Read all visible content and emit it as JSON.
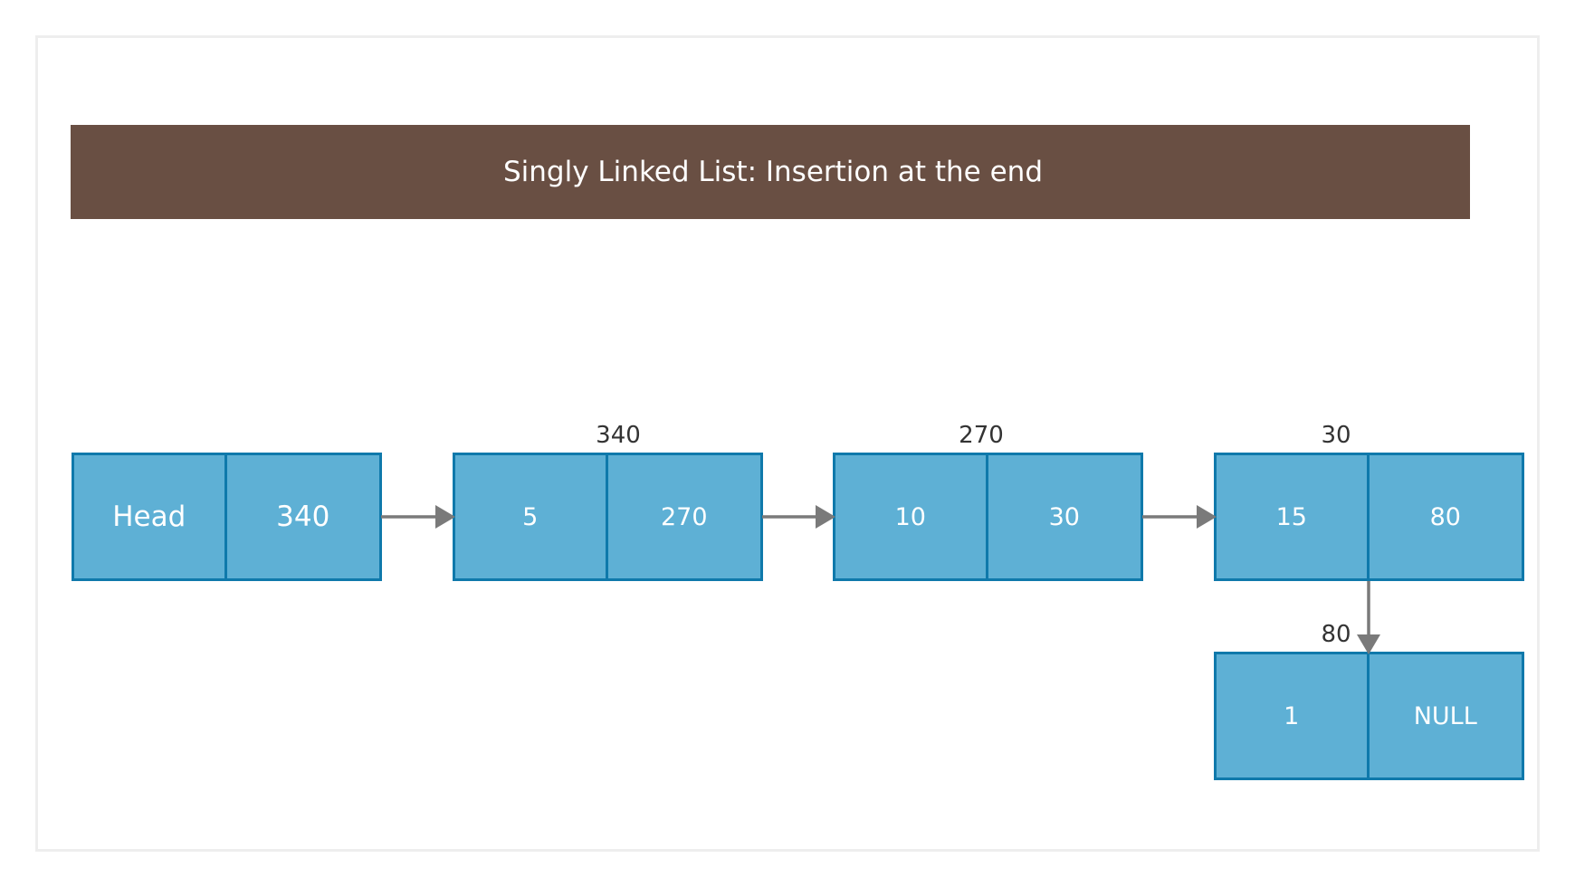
{
  "title": "Singly Linked List: Insertion at the end",
  "head": {
    "label": "Head",
    "pointer": "340"
  },
  "nodes": [
    {
      "address": "340",
      "data": "5",
      "next": "270"
    },
    {
      "address": "270",
      "data": "10",
      "next": "30"
    },
    {
      "address": "30",
      "data": "15",
      "next": "80"
    },
    {
      "address": "80",
      "data": "1",
      "next": "NULL"
    }
  ],
  "colors": {
    "banner": "#694f43",
    "cell_fill": "#5eb0d5",
    "cell_border": "#0f79ab",
    "arrow": "#7a7a7a"
  }
}
